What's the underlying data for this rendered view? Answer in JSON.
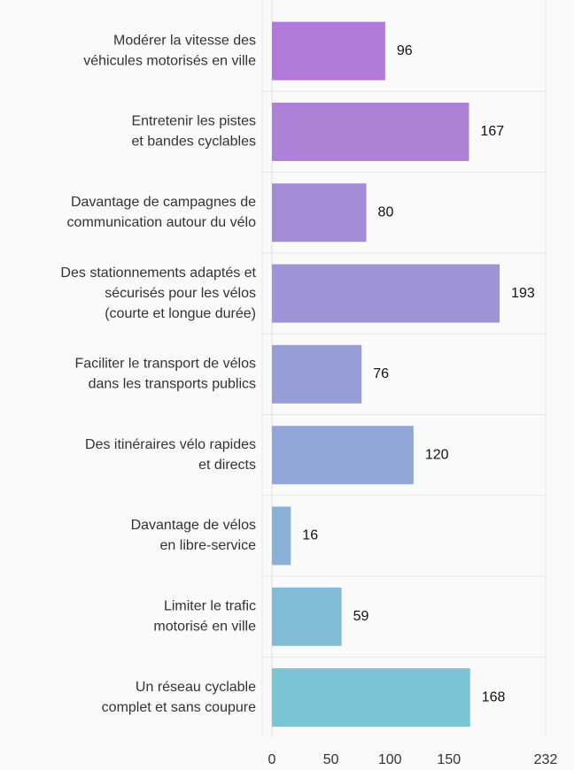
{
  "chart_data": {
    "type": "barh",
    "categories": [
      [
        "Modérer la vitesse des",
        "véhicules motorisés en ville"
      ],
      [
        "Entretenir les pistes",
        "et bandes cyclables"
      ],
      [
        "Davantage de campagnes de",
        "communication autour du vélo"
      ],
      [
        "Des stationnements adaptés et",
        "sécurisés pour les vélos",
        "(courte et longue durée)"
      ],
      [
        "Faciliter le transport de vélos",
        "dans les transports publics"
      ],
      [
        "Des itinéraires vélo rapides",
        "et directs"
      ],
      [
        "Davantage de vélos",
        "en libre-service"
      ],
      [
        "Limiter le trafic",
        "motorisé en ville"
      ],
      [
        "Un réseau cyclable",
        "complet et sans coupure"
      ]
    ],
    "values": [
      96,
      167,
      80,
      193,
      76,
      120,
      16,
      59,
      168
    ],
    "colors": [
      "#b27ad8",
      "#ab82d6",
      "#a48bd6",
      "#9d94d6",
      "#979dd7",
      "#90a7d8",
      "#89b1d7",
      "#82bbd6",
      "#7bc4d6"
    ],
    "xlim": [
      0,
      232
    ],
    "xticks": [
      0,
      50,
      100,
      150,
      232
    ],
    "grid": false
  }
}
